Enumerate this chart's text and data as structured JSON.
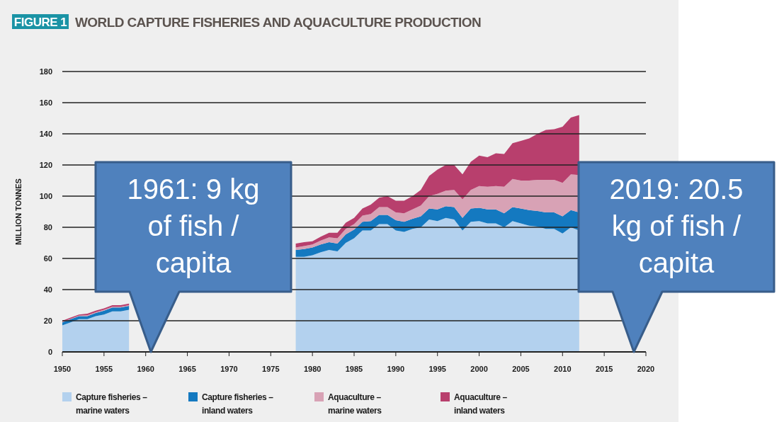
{
  "chart_data": {
    "type": "area",
    "stacked": true,
    "title": "WORLD CAPTURE FISHERIES AND AQUACULTURE PRODUCTION",
    "subtitle": "FIGURE 1",
    "ylabel": "MILLION TONNES",
    "x": [
      1950,
      1951,
      1952,
      1953,
      1954,
      1955,
      1956,
      1957,
      1958,
      1959,
      1960,
      1961,
      1962,
      1963,
      1964,
      1965,
      1966,
      1967,
      1968,
      1969,
      1970,
      1971,
      1972,
      1973,
      1974,
      1975,
      1976,
      1977,
      1978,
      1979,
      1980,
      1981,
      1982,
      1983,
      1984,
      1985,
      1986,
      1987,
      1988,
      1989,
      1990,
      1991,
      1992,
      1993,
      1994,
      1995,
      1996,
      1997,
      1998,
      1999,
      2000,
      2001,
      2002,
      2003,
      2004,
      2005,
      2006,
      2007,
      2008,
      2009,
      2010,
      2011,
      2012
    ],
    "series": [
      {
        "name": "Capture fisheries – marine waters",
        "color": "#b3d1ee",
        "values": [
          17,
          19,
          21,
          21,
          23,
          24,
          26,
          26,
          27,
          null,
          null,
          null,
          null,
          null,
          null,
          null,
          null,
          null,
          null,
          null,
          null,
          null,
          null,
          null,
          null,
          null,
          null,
          null,
          61,
          61,
          62,
          64,
          65.5,
          64.5,
          70,
          73,
          78,
          78,
          82,
          82,
          78,
          77,
          79,
          80,
          85,
          84,
          86,
          85,
          78,
          83.5,
          84,
          82.5,
          82.5,
          80,
          84,
          82.5,
          81,
          80.5,
          79,
          79,
          76,
          80,
          78
        ]
      },
      {
        "name": "Capture fisheries – inland waters",
        "color": "#1479c0",
        "values": [
          2,
          2,
          2,
          2,
          2,
          2.5,
          2.5,
          2.5,
          2.5,
          null,
          null,
          null,
          null,
          null,
          null,
          null,
          null,
          null,
          null,
          null,
          null,
          null,
          null,
          null,
          null,
          null,
          null,
          null,
          4.5,
          5,
          5,
          5,
          5,
          5,
          5.5,
          5.5,
          5.5,
          6,
          6,
          6,
          6.5,
          6.5,
          6.5,
          7,
          7,
          7.5,
          7.5,
          8,
          8,
          8.5,
          8.5,
          9,
          9,
          9,
          9,
          9.5,
          10,
          10,
          10.5,
          10.5,
          11,
          11,
          11.5
        ]
      },
      {
        "name": "Aquaculture – marine waters",
        "color": "#d8a2b5",
        "values": [
          0.3,
          0.3,
          0.3,
          0.5,
          0.5,
          0.5,
          0.5,
          0.5,
          0.5,
          null,
          null,
          null,
          null,
          null,
          null,
          null,
          null,
          null,
          null,
          null,
          null,
          null,
          null,
          null,
          null,
          null,
          null,
          null,
          1.5,
          2,
          2,
          2.5,
          3,
          3.5,
          3.5,
          3.5,
          4,
          4.5,
          5,
          5,
          5,
          5.5,
          6,
          7,
          8,
          10,
          10,
          11,
          12,
          12,
          14,
          14.5,
          15,
          17,
          18,
          18,
          19,
          20,
          21,
          21,
          21.5,
          23,
          24
        ]
      },
      {
        "name": "Aquaculture – inland waters",
        "color": "#b83f6d",
        "values": [
          0.7,
          0.7,
          0.7,
          1,
          1,
          1,
          1,
          1,
          1,
          null,
          null,
          null,
          null,
          null,
          null,
          null,
          null,
          null,
          null,
          null,
          null,
          null,
          null,
          null,
          null,
          null,
          null,
          null,
          2.5,
          2.5,
          2,
          2.5,
          3,
          3.5,
          4,
          4,
          4.5,
          6,
          6,
          7,
          7.5,
          8,
          8.5,
          10,
          13,
          15.5,
          16.5,
          16,
          16,
          18,
          19.5,
          19,
          21,
          21,
          23,
          25.5,
          27,
          29.5,
          32,
          32.5,
          36,
          36.5,
          38.5
        ]
      }
    ],
    "xlim": [
      1950,
      2020
    ],
    "xticks": [
      1950,
      1955,
      1960,
      1965,
      1970,
      1975,
      1980,
      1985,
      1990,
      1995,
      2000,
      2005,
      2010,
      2015,
      2020
    ],
    "ylim": [
      0,
      180
    ],
    "yticks": [
      0,
      20,
      40,
      60,
      80,
      100,
      120,
      140,
      160,
      180
    ],
    "grid": "y",
    "legend": "bottom",
    "annotations": [
      "1961: 9 kg of fish / capita",
      "2019: 20.5 kg of fish / capita"
    ]
  }
}
